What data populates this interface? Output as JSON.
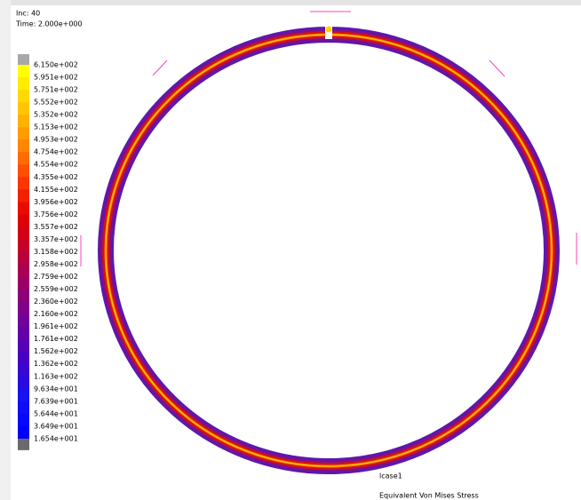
{
  "header": {
    "inc": "Inc:  40",
    "time": "Time: 2.000e+000"
  },
  "legend": {
    "labels": [
      "6.150e+002",
      "5.951e+002",
      "5.751e+002",
      "5.552e+002",
      "5.352e+002",
      "5.153e+002",
      "4.953e+002",
      "4.754e+002",
      "4.554e+002",
      "4.355e+002",
      "4.155e+002",
      "3.956e+002",
      "3.756e+002",
      "3.557e+002",
      "3.357e+002",
      "3.158e+002",
      "2.958e+002",
      "2.759e+002",
      "2.559e+002",
      "2.360e+002",
      "2.160e+002",
      "1.961e+002",
      "1.761e+002",
      "1.562e+002",
      "1.362e+002",
      "1.163e+002",
      "9.634e+001",
      "7.639e+001",
      "5.644e+001",
      "3.649e+001",
      "1.654e+001"
    ]
  },
  "footer": {
    "lcase": "lcase1",
    "title": "Equivalent Von Mises Stress"
  }
}
